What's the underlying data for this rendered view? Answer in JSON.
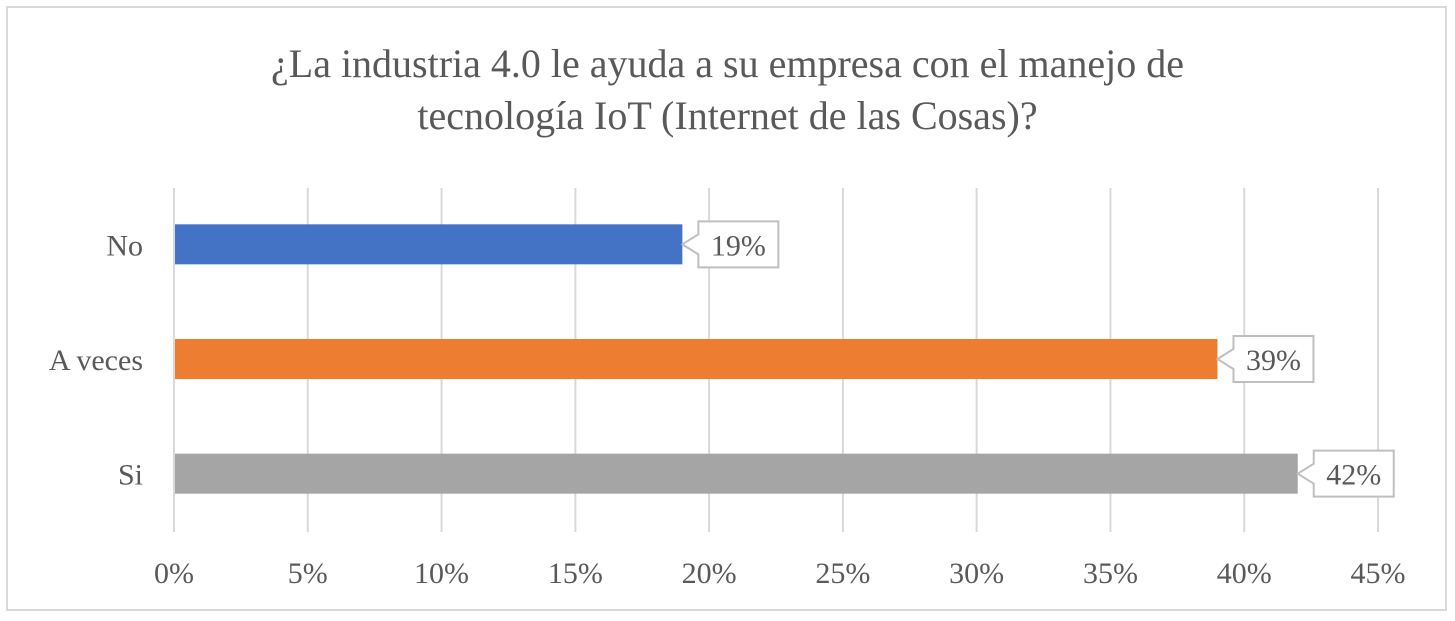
{
  "chart_data": {
    "type": "bar",
    "orientation": "horizontal",
    "title_lines": [
      "¿La industria 4.0 le ayuda a su empresa con el manejo de",
      "tecnología IoT (Internet de las Cosas)?"
    ],
    "categories": [
      "No",
      "A veces",
      "Si"
    ],
    "values": [
      19,
      39,
      42
    ],
    "data_labels": [
      "19%",
      "39%",
      "42%"
    ],
    "colors": [
      "#4472c4",
      "#ed7d31",
      "#a5a5a5"
    ],
    "xlim": [
      0,
      45
    ],
    "xticks": [
      0,
      5,
      10,
      15,
      20,
      25,
      30,
      35,
      40,
      45
    ],
    "xtick_labels": [
      "0%",
      "5%",
      "10%",
      "15%",
      "20%",
      "25%",
      "30%",
      "35%",
      "40%",
      "45%"
    ],
    "grid": true,
    "legend": "none"
  }
}
